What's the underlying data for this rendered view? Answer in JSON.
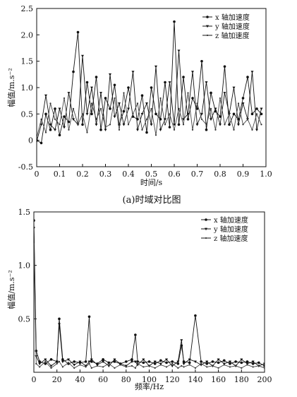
{
  "chart_data": [
    {
      "type": "line",
      "caption": "(a)时域对比图",
      "xlabel": "时间/s",
      "ylabel": "幅值/m.s⁻²",
      "xlim": [
        0,
        1.0
      ],
      "ylim": [
        -0.5,
        2.5
      ],
      "xticks": [
        "0",
        "0.1",
        "0.2",
        "0.3",
        "0.4",
        "0.5",
        "0.6",
        "0.7",
        "0.8",
        "0.9",
        "1.0"
      ],
      "yticks": [
        "-0.5",
        "0",
        "0.5",
        "1.0",
        "1.5",
        "2.0",
        "2.5"
      ],
      "grid": false,
      "legend_position": "top-right",
      "series": [
        {
          "name": "x 轴加速度",
          "x": [
            0,
            0.02,
            0.04,
            0.06,
            0.08,
            0.1,
            0.12,
            0.14,
            0.16,
            0.18,
            0.2,
            0.22,
            0.24,
            0.26,
            0.28,
            0.3,
            0.32,
            0.34,
            0.36,
            0.38,
            0.4,
            0.42,
            0.44,
            0.46,
            0.48,
            0.5,
            0.52,
            0.54,
            0.56,
            0.58,
            0.6,
            0.62,
            0.64,
            0.66,
            0.68,
            0.7,
            0.72,
            0.74,
            0.76,
            0.78,
            0.8,
            0.82,
            0.84,
            0.86,
            0.88,
            0.9,
            0.92,
            0.94,
            0.96,
            0.98
          ],
          "y": [
            0,
            -0.05,
            0.5,
            0.2,
            0.6,
            0.1,
            0.45,
            0.35,
            1.3,
            2.05,
            0.3,
            1.1,
            0.5,
            1.2,
            0.2,
            0.8,
            0.6,
            1.05,
            0.3,
            0.55,
            1.0,
            0.45,
            0.4,
            0.85,
            0.15,
            1.0,
            0.5,
            0.4,
            1.1,
            0.25,
            2.25,
            0.3,
            1.2,
            0.4,
            0.8,
            0.6,
            1.5,
            0.2,
            0.9,
            0.55,
            0.45,
            1.4,
            0.3,
            0.5,
            0.4,
            0.8,
            1.2,
            0.5,
            0.6,
            0.5
          ]
        },
        {
          "name": "y 轴加速度",
          "x": [
            0,
            0.02,
            0.04,
            0.06,
            0.08,
            0.1,
            0.12,
            0.14,
            0.16,
            0.18,
            0.2,
            0.22,
            0.24,
            0.26,
            0.28,
            0.3,
            0.32,
            0.34,
            0.36,
            0.38,
            0.4,
            0.42,
            0.44,
            0.46,
            0.48,
            0.5,
            0.52,
            0.54,
            0.56,
            0.58,
            0.6,
            0.62,
            0.64,
            0.66,
            0.68,
            0.7,
            0.72,
            0.74,
            0.76,
            0.78,
            0.8,
            0.82,
            0.84,
            0.86,
            0.88,
            0.9,
            0.92,
            0.94,
            0.96,
            0.98
          ],
          "y": [
            -0.02,
            0.3,
            0.85,
            0.3,
            0.2,
            0.6,
            0.25,
            0.9,
            0.4,
            0.3,
            1.6,
            0.5,
            1.0,
            0.3,
            0.9,
            0.2,
            1.25,
            0.45,
            0.7,
            0.3,
            0.6,
            1.3,
            0.2,
            0.5,
            0.7,
            0.3,
            1.4,
            0.2,
            0.4,
            1.1,
            0.3,
            1.7,
            0.4,
            0.5,
            1.3,
            0.3,
            0.5,
            1.1,
            0.4,
            0.6,
            0.3,
            0.9,
            0.5,
            1.0,
            0.3,
            0.7,
            0.4,
            1.3,
            0.2,
            0.6
          ]
        },
        {
          "name": "z 轴加速度",
          "x": [
            0,
            0.02,
            0.04,
            0.06,
            0.08,
            0.1,
            0.12,
            0.14,
            0.16,
            0.18,
            0.2,
            0.22,
            0.24,
            0.26,
            0.28,
            0.3,
            0.32,
            0.34,
            0.36,
            0.38,
            0.4,
            0.42,
            0.44,
            0.46,
            0.48,
            0.5,
            0.52,
            0.54,
            0.56,
            0.58,
            0.6,
            0.62,
            0.64,
            0.66,
            0.68,
            0.7,
            0.72,
            0.74,
            0.76,
            0.78,
            0.8,
            0.82,
            0.84,
            0.86,
            0.88,
            0.9,
            0.92,
            0.94,
            0.96,
            0.98
          ],
          "y": [
            0.05,
            0.4,
            0.15,
            0.7,
            0.4,
            0.3,
            0.8,
            0.2,
            0.6,
            0.3,
            0.5,
            0.15,
            0.7,
            0.4,
            0.6,
            0.25,
            0.3,
            0.8,
            0.2,
            0.9,
            0.3,
            0.5,
            0.7,
            0.2,
            0.4,
            0.6,
            0.1,
            0.8,
            0.3,
            0.5,
            0.2,
            0.6,
            0.3,
            0.9,
            0.2,
            0.7,
            0.4,
            0.3,
            0.6,
            0.2,
            0.8,
            0.3,
            0.5,
            0.2,
            0.7,
            0.3,
            0.4,
            0.2,
            0.5,
            0.3
          ]
        }
      ]
    },
    {
      "type": "line",
      "xlabel": "频率/Hz",
      "ylabel": "幅值/m.s⁻²",
      "xlim": [
        0,
        200
      ],
      "ylim": [
        0,
        1.5
      ],
      "xticks": [
        "0",
        "20",
        "40",
        "60",
        "80",
        "100",
        "120",
        "140",
        "160",
        "180",
        "200"
      ],
      "yticks": [
        "0.5",
        "1.0",
        "1.5"
      ],
      "grid": false,
      "legend_position": "top-right",
      "series": [
        {
          "name": "x 轴加速度",
          "x": [
            0,
            2,
            5,
            10,
            15,
            20,
            22,
            25,
            30,
            35,
            40,
            45,
            48,
            50,
            55,
            60,
            65,
            70,
            75,
            80,
            85,
            88,
            90,
            95,
            100,
            105,
            110,
            115,
            120,
            125,
            128,
            130,
            135,
            140,
            145,
            150,
            155,
            160,
            165,
            170,
            175,
            180,
            185,
            190,
            195,
            200
          ],
          "y": [
            1.42,
            0.2,
            0.1,
            0.08,
            0.12,
            0.1,
            0.5,
            0.12,
            0.08,
            0.1,
            0.09,
            0.1,
            0.52,
            0.1,
            0.08,
            0.12,
            0.09,
            0.1,
            0.08,
            0.1,
            0.12,
            0.35,
            0.1,
            0.09,
            0.1,
            0.08,
            0.11,
            0.09,
            0.1,
            0.08,
            0.25,
            0.1,
            0.09,
            0.53,
            0.1,
            0.08,
            0.1,
            0.09,
            0.11,
            0.08,
            0.1,
            0.09,
            0.1,
            0.08,
            0.09,
            0.06
          ]
        },
        {
          "name": "y 轴加速度",
          "x": [
            0,
            2,
            5,
            10,
            15,
            20,
            22,
            25,
            30,
            35,
            40,
            45,
            48,
            50,
            55,
            60,
            65,
            70,
            75,
            80,
            85,
            88,
            90,
            95,
            100,
            105,
            110,
            115,
            120,
            125,
            128,
            130,
            135,
            140,
            145,
            150,
            155,
            160,
            165,
            170,
            175,
            180,
            185,
            190,
            195,
            200
          ],
          "y": [
            1.35,
            0.15,
            0.08,
            0.12,
            0.06,
            0.1,
            0.45,
            0.1,
            0.12,
            0.07,
            0.1,
            0.06,
            0.1,
            0.12,
            0.07,
            0.1,
            0.06,
            0.12,
            0.08,
            0.06,
            0.1,
            0.1,
            0.07,
            0.12,
            0.06,
            0.1,
            0.08,
            0.12,
            0.06,
            0.1,
            0.3,
            0.08,
            0.12,
            0.1,
            0.07,
            0.1,
            0.06,
            0.12,
            0.08,
            0.1,
            0.06,
            0.12,
            0.08,
            0.1,
            0.06,
            0.08
          ]
        },
        {
          "name": "z 轴加速度",
          "x": [
            0,
            2,
            5,
            10,
            15,
            20,
            22,
            25,
            30,
            35,
            40,
            45,
            48,
            50,
            55,
            60,
            65,
            70,
            75,
            80,
            85,
            88,
            90,
            95,
            100,
            105,
            110,
            115,
            120,
            125,
            128,
            130,
            135,
            140,
            145,
            150,
            155,
            160,
            165,
            170,
            175,
            180,
            185,
            190,
            195,
            200
          ],
          "y": [
            1.2,
            0.08,
            0.05,
            0.1,
            0.04,
            0.08,
            0.1,
            0.05,
            0.09,
            0.04,
            0.07,
            0.05,
            0.08,
            0.04,
            0.06,
            0.05,
            0.08,
            0.04,
            0.07,
            0.05,
            0.06,
            0.04,
            0.08,
            0.05,
            0.06,
            0.04,
            0.07,
            0.05,
            0.08,
            0.04,
            0.06,
            0.05,
            0.07,
            0.04,
            0.08,
            0.05,
            0.06,
            0.04,
            0.07,
            0.05,
            0.06,
            0.04,
            0.07,
            0.05,
            0.06,
            0.04
          ]
        }
      ]
    }
  ]
}
